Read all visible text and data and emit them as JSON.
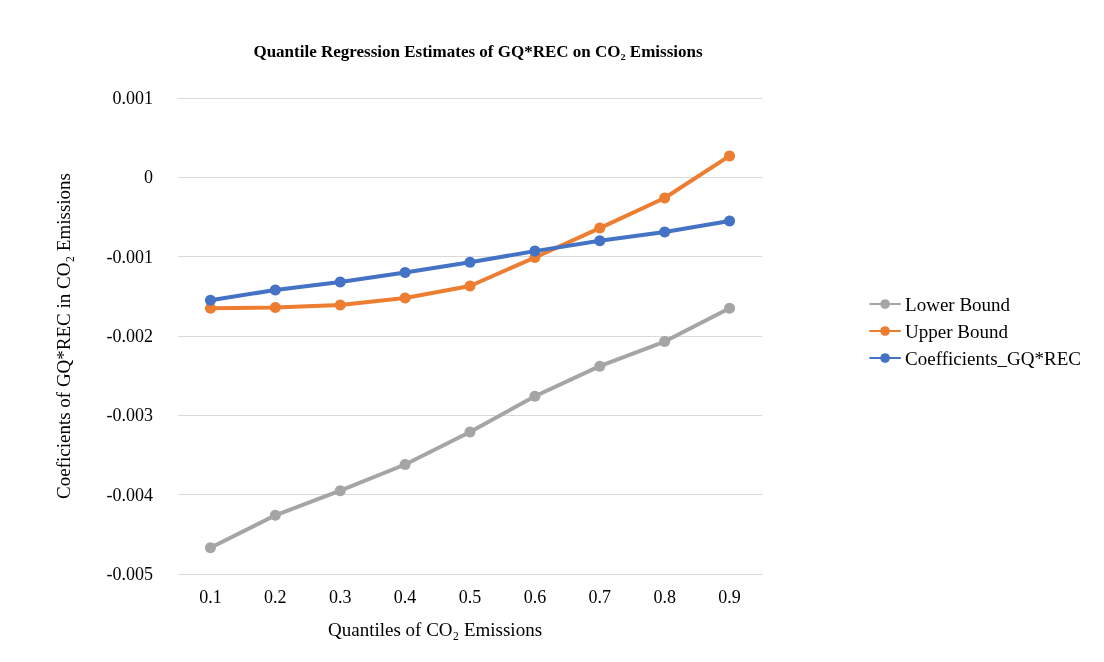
{
  "chart_data": {
    "type": "line",
    "title": "Quantile Regression Estimates of GQ*REC on CO₂ Emissions",
    "xlabel": "Quantiles of CO₂ Emissions",
    "ylabel": "Coeficients of GQ*REC in CO₂ Emissions",
    "categories": [
      "0.1",
      "0.2",
      "0.3",
      "0.4",
      "0.5",
      "0.6",
      "0.7",
      "0.8",
      "0.9"
    ],
    "series": [
      {
        "name": "Lower Bound",
        "color": "#a5a5a5",
        "values": [
          -0.00467,
          -0.00426,
          -0.00395,
          -0.00362,
          -0.00321,
          -0.00276,
          -0.00238,
          -0.00207,
          -0.00165
        ]
      },
      {
        "name": "Upper Bound",
        "color": "#ed7d31",
        "values": [
          -0.00165,
          -0.00164,
          -0.00161,
          -0.00152,
          -0.00137,
          -0.00101,
          -0.00064,
          -0.00026,
          0.00027
        ]
      },
      {
        "name": "Coefficients_GQ*REC",
        "color": "#4472c4",
        "values": [
          -0.00155,
          -0.00142,
          -0.00132,
          -0.0012,
          -0.00107,
          -0.00093,
          -0.0008,
          -0.00069,
          -0.00055
        ]
      }
    ],
    "ylim": [
      -0.005,
      0.001
    ],
    "yticks": [
      -0.005,
      -0.004,
      -0.003,
      -0.002,
      -0.001,
      0,
      0.001
    ],
    "grid": "y",
    "legend": "right",
    "marker": "circle",
    "line_style": "solid"
  }
}
